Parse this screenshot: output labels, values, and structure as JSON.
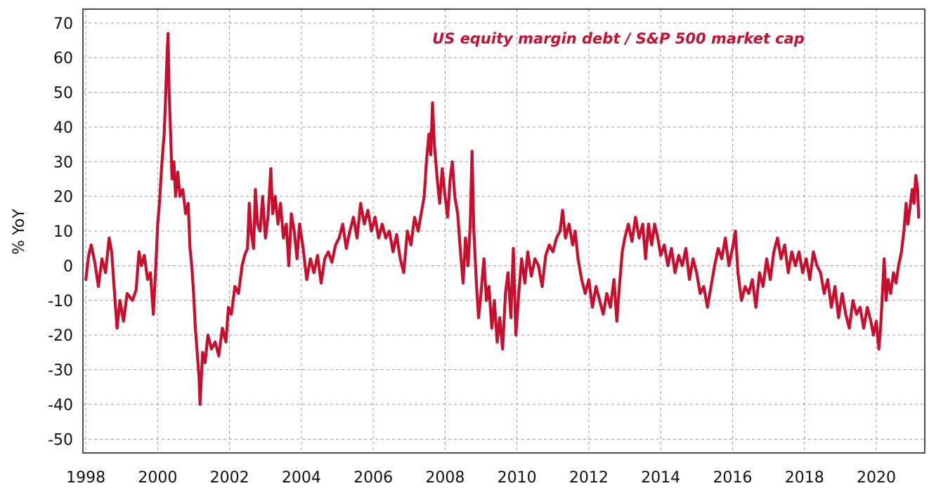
{
  "chart_data": {
    "type": "line",
    "title": "US equity margin debt / S&P 500 market cap",
    "xlabel": "",
    "ylabel": "% YoY",
    "xlim": [
      1997.92,
      2021.35
    ],
    "ylim": [
      -54,
      74
    ],
    "x_ticks": [
      1998,
      2000,
      2002,
      2004,
      2006,
      2008,
      2010,
      2012,
      2014,
      2016,
      2018,
      2020
    ],
    "x_tick_labels": [
      "1998",
      "2000",
      "2002",
      "2004",
      "2006",
      "2008",
      "2010",
      "2012",
      "2014",
      "2016",
      "2018",
      "2020"
    ],
    "y_ticks": [
      70,
      60,
      50,
      40,
      30,
      20,
      10,
      0,
      -10,
      -20,
      -30,
      -40,
      -50
    ],
    "y_tick_labels": [
      "70",
      "60",
      "50",
      "40",
      "30",
      "20",
      "10",
      "0",
      "-10",
      "-20",
      "-30",
      "-40",
      "-50"
    ],
    "grid": true,
    "legend": "none",
    "series": [
      {
        "color": "#c8102e",
        "points": [
          [
            1998.0,
            -4
          ],
          [
            1998.08,
            3
          ],
          [
            1998.15,
            6
          ],
          [
            1998.25,
            1
          ],
          [
            1998.35,
            -6
          ],
          [
            1998.45,
            2
          ],
          [
            1998.55,
            -2
          ],
          [
            1998.65,
            8
          ],
          [
            1998.72,
            4
          ],
          [
            1998.8,
            -8
          ],
          [
            1998.87,
            -18
          ],
          [
            1998.95,
            -10
          ],
          [
            1999.05,
            -16
          ],
          [
            1999.15,
            -8
          ],
          [
            1999.3,
            -10
          ],
          [
            1999.4,
            -7
          ],
          [
            1999.48,
            4
          ],
          [
            1999.55,
            0
          ],
          [
            1999.63,
            3
          ],
          [
            1999.72,
            -4
          ],
          [
            1999.8,
            -2
          ],
          [
            1999.88,
            -14
          ],
          [
            1999.95,
            0
          ],
          [
            2000.0,
            12
          ],
          [
            2000.05,
            18
          ],
          [
            2000.12,
            30
          ],
          [
            2000.18,
            38
          ],
          [
            2000.22,
            48
          ],
          [
            2000.26,
            60
          ],
          [
            2000.29,
            67
          ],
          [
            2000.32,
            50
          ],
          [
            2000.36,
            38
          ],
          [
            2000.4,
            25
          ],
          [
            2000.45,
            30
          ],
          [
            2000.5,
            20
          ],
          [
            2000.56,
            27
          ],
          [
            2000.62,
            20
          ],
          [
            2000.7,
            22
          ],
          [
            2000.78,
            15
          ],
          [
            2000.85,
            18
          ],
          [
            2000.9,
            5
          ],
          [
            2000.95,
            0
          ],
          [
            2001.0,
            -8
          ],
          [
            2001.05,
            -18
          ],
          [
            2001.1,
            -25
          ],
          [
            2001.15,
            -32
          ],
          [
            2001.18,
            -40
          ],
          [
            2001.25,
            -25
          ],
          [
            2001.32,
            -28
          ],
          [
            2001.4,
            -20
          ],
          [
            2001.5,
            -24
          ],
          [
            2001.6,
            -22
          ],
          [
            2001.7,
            -26
          ],
          [
            2001.8,
            -18
          ],
          [
            2001.9,
            -22
          ],
          [
            2001.97,
            -12
          ],
          [
            2002.05,
            -14
          ],
          [
            2002.15,
            -6
          ],
          [
            2002.25,
            -8
          ],
          [
            2002.35,
            0
          ],
          [
            2002.42,
            3
          ],
          [
            2002.5,
            5
          ],
          [
            2002.55,
            18
          ],
          [
            2002.6,
            10
          ],
          [
            2002.67,
            5
          ],
          [
            2002.72,
            22
          ],
          [
            2002.78,
            12
          ],
          [
            2002.85,
            10
          ],
          [
            2002.92,
            20
          ],
          [
            2003.0,
            8
          ],
          [
            2003.07,
            14
          ],
          [
            2003.15,
            28
          ],
          [
            2003.2,
            15
          ],
          [
            2003.27,
            20
          ],
          [
            2003.35,
            12
          ],
          [
            2003.42,
            18
          ],
          [
            2003.5,
            8
          ],
          [
            2003.58,
            12
          ],
          [
            2003.65,
            0
          ],
          [
            2003.72,
            15
          ],
          [
            2003.8,
            10
          ],
          [
            2003.88,
            2
          ],
          [
            2003.95,
            12
          ],
          [
            2004.05,
            5
          ],
          [
            2004.15,
            -4
          ],
          [
            2004.25,
            2
          ],
          [
            2004.35,
            -2
          ],
          [
            2004.45,
            3
          ],
          [
            2004.55,
            -5
          ],
          [
            2004.65,
            2
          ],
          [
            2004.75,
            4
          ],
          [
            2004.85,
            1
          ],
          [
            2004.95,
            6
          ],
          [
            2005.05,
            8
          ],
          [
            2005.15,
            12
          ],
          [
            2005.25,
            5
          ],
          [
            2005.35,
            10
          ],
          [
            2005.45,
            14
          ],
          [
            2005.55,
            8
          ],
          [
            2005.65,
            18
          ],
          [
            2005.75,
            12
          ],
          [
            2005.85,
            16
          ],
          [
            2005.95,
            10
          ],
          [
            2006.05,
            14
          ],
          [
            2006.15,
            8
          ],
          [
            2006.25,
            12
          ],
          [
            2006.35,
            8
          ],
          [
            2006.45,
            10
          ],
          [
            2006.55,
            4
          ],
          [
            2006.65,
            9
          ],
          [
            2006.75,
            2
          ],
          [
            2006.85,
            -2
          ],
          [
            2006.95,
            10
          ],
          [
            2007.05,
            6
          ],
          [
            2007.15,
            14
          ],
          [
            2007.25,
            10
          ],
          [
            2007.35,
            16
          ],
          [
            2007.42,
            20
          ],
          [
            2007.48,
            30
          ],
          [
            2007.55,
            38
          ],
          [
            2007.6,
            32
          ],
          [
            2007.65,
            47
          ],
          [
            2007.7,
            35
          ],
          [
            2007.78,
            25
          ],
          [
            2007.85,
            18
          ],
          [
            2007.92,
            28
          ],
          [
            2008.0,
            20
          ],
          [
            2008.07,
            14
          ],
          [
            2008.14,
            25
          ],
          [
            2008.2,
            30
          ],
          [
            2008.27,
            20
          ],
          [
            2008.35,
            15
          ],
          [
            2008.42,
            5
          ],
          [
            2008.5,
            -5
          ],
          [
            2008.57,
            8
          ],
          [
            2008.64,
            0
          ],
          [
            2008.7,
            12
          ],
          [
            2008.75,
            33
          ],
          [
            2008.8,
            10
          ],
          [
            2008.87,
            -5
          ],
          [
            2008.93,
            -15
          ],
          [
            2009.0,
            -8
          ],
          [
            2009.08,
            2
          ],
          [
            2009.15,
            -10
          ],
          [
            2009.22,
            -6
          ],
          [
            2009.3,
            -18
          ],
          [
            2009.37,
            -10
          ],
          [
            2009.45,
            -22
          ],
          [
            2009.52,
            -15
          ],
          [
            2009.6,
            -24
          ],
          [
            2009.68,
            -8
          ],
          [
            2009.75,
            -2
          ],
          [
            2009.83,
            -15
          ],
          [
            2009.9,
            5
          ],
          [
            2009.97,
            -20
          ],
          [
            2010.05,
            -8
          ],
          [
            2010.13,
            2
          ],
          [
            2010.22,
            -5
          ],
          [
            2010.3,
            4
          ],
          [
            2010.4,
            -3
          ],
          [
            2010.5,
            2
          ],
          [
            2010.6,
            0
          ],
          [
            2010.7,
            -6
          ],
          [
            2010.8,
            3
          ],
          [
            2010.9,
            6
          ],
          [
            2011.0,
            4
          ],
          [
            2011.1,
            8
          ],
          [
            2011.2,
            10
          ],
          [
            2011.27,
            16
          ],
          [
            2011.35,
            8
          ],
          [
            2011.45,
            12
          ],
          [
            2011.55,
            6
          ],
          [
            2011.62,
            10
          ],
          [
            2011.7,
            2
          ],
          [
            2011.8,
            -4
          ],
          [
            2011.9,
            -8
          ],
          [
            2012.0,
            -4
          ],
          [
            2012.1,
            -12
          ],
          [
            2012.2,
            -6
          ],
          [
            2012.3,
            -10
          ],
          [
            2012.4,
            -14
          ],
          [
            2012.5,
            -8
          ],
          [
            2012.6,
            -12
          ],
          [
            2012.7,
            -4
          ],
          [
            2012.78,
            -16
          ],
          [
            2012.85,
            -6
          ],
          [
            2012.93,
            4
          ],
          [
            2013.0,
            8
          ],
          [
            2013.1,
            12
          ],
          [
            2013.2,
            7
          ],
          [
            2013.3,
            14
          ],
          [
            2013.4,
            8
          ],
          [
            2013.5,
            12
          ],
          [
            2013.58,
            2
          ],
          [
            2013.66,
            12
          ],
          [
            2013.75,
            6
          ],
          [
            2013.83,
            12
          ],
          [
            2013.92,
            8
          ],
          [
            2014.0,
            3
          ],
          [
            2014.1,
            6
          ],
          [
            2014.2,
            0
          ],
          [
            2014.3,
            5
          ],
          [
            2014.4,
            -2
          ],
          [
            2014.5,
            3
          ],
          [
            2014.6,
            0
          ],
          [
            2014.7,
            5
          ],
          [
            2014.8,
            -4
          ],
          [
            2014.9,
            2
          ],
          [
            2015.0,
            -2
          ],
          [
            2015.1,
            -8
          ],
          [
            2015.2,
            -6
          ],
          [
            2015.3,
            -12
          ],
          [
            2015.4,
            -6
          ],
          [
            2015.5,
            0
          ],
          [
            2015.6,
            5
          ],
          [
            2015.7,
            2
          ],
          [
            2015.8,
            8
          ],
          [
            2015.9,
            0
          ],
          [
            2016.0,
            5
          ],
          [
            2016.08,
            10
          ],
          [
            2016.15,
            -2
          ],
          [
            2016.25,
            -10
          ],
          [
            2016.35,
            -6
          ],
          [
            2016.45,
            -8
          ],
          [
            2016.55,
            -4
          ],
          [
            2016.65,
            -12
          ],
          [
            2016.75,
            -2
          ],
          [
            2016.85,
            -6
          ],
          [
            2016.95,
            2
          ],
          [
            2017.05,
            -4
          ],
          [
            2017.15,
            4
          ],
          [
            2017.25,
            8
          ],
          [
            2017.35,
            2
          ],
          [
            2017.45,
            6
          ],
          [
            2017.55,
            -2
          ],
          [
            2017.65,
            4
          ],
          [
            2017.75,
            0
          ],
          [
            2017.85,
            4
          ],
          [
            2017.95,
            -2
          ],
          [
            2018.05,
            2
          ],
          [
            2018.15,
            -4
          ],
          [
            2018.25,
            4
          ],
          [
            2018.35,
            0
          ],
          [
            2018.45,
            -2
          ],
          [
            2018.55,
            -8
          ],
          [
            2018.65,
            -4
          ],
          [
            2018.75,
            -12
          ],
          [
            2018.85,
            -6
          ],
          [
            2018.95,
            -15
          ],
          [
            2019.05,
            -8
          ],
          [
            2019.15,
            -14
          ],
          [
            2019.25,
            -18
          ],
          [
            2019.35,
            -10
          ],
          [
            2019.45,
            -14
          ],
          [
            2019.55,
            -12
          ],
          [
            2019.65,
            -18
          ],
          [
            2019.75,
            -12
          ],
          [
            2019.85,
            -16
          ],
          [
            2019.92,
            -20
          ],
          [
            2020.0,
            -16
          ],
          [
            2020.07,
            -24
          ],
          [
            2020.12,
            -18
          ],
          [
            2020.17,
            -8
          ],
          [
            2020.22,
            2
          ],
          [
            2020.27,
            -10
          ],
          [
            2020.33,
            -4
          ],
          [
            2020.4,
            -8
          ],
          [
            2020.48,
            -2
          ],
          [
            2020.55,
            -5
          ],
          [
            2020.62,
            0
          ],
          [
            2020.7,
            4
          ],
          [
            2020.77,
            10
          ],
          [
            2020.83,
            18
          ],
          [
            2020.88,
            12
          ],
          [
            2020.93,
            16
          ],
          [
            2021.0,
            22
          ],
          [
            2021.05,
            18
          ],
          [
            2021.1,
            26
          ],
          [
            2021.15,
            22
          ],
          [
            2021.18,
            14
          ]
        ]
      }
    ]
  }
}
